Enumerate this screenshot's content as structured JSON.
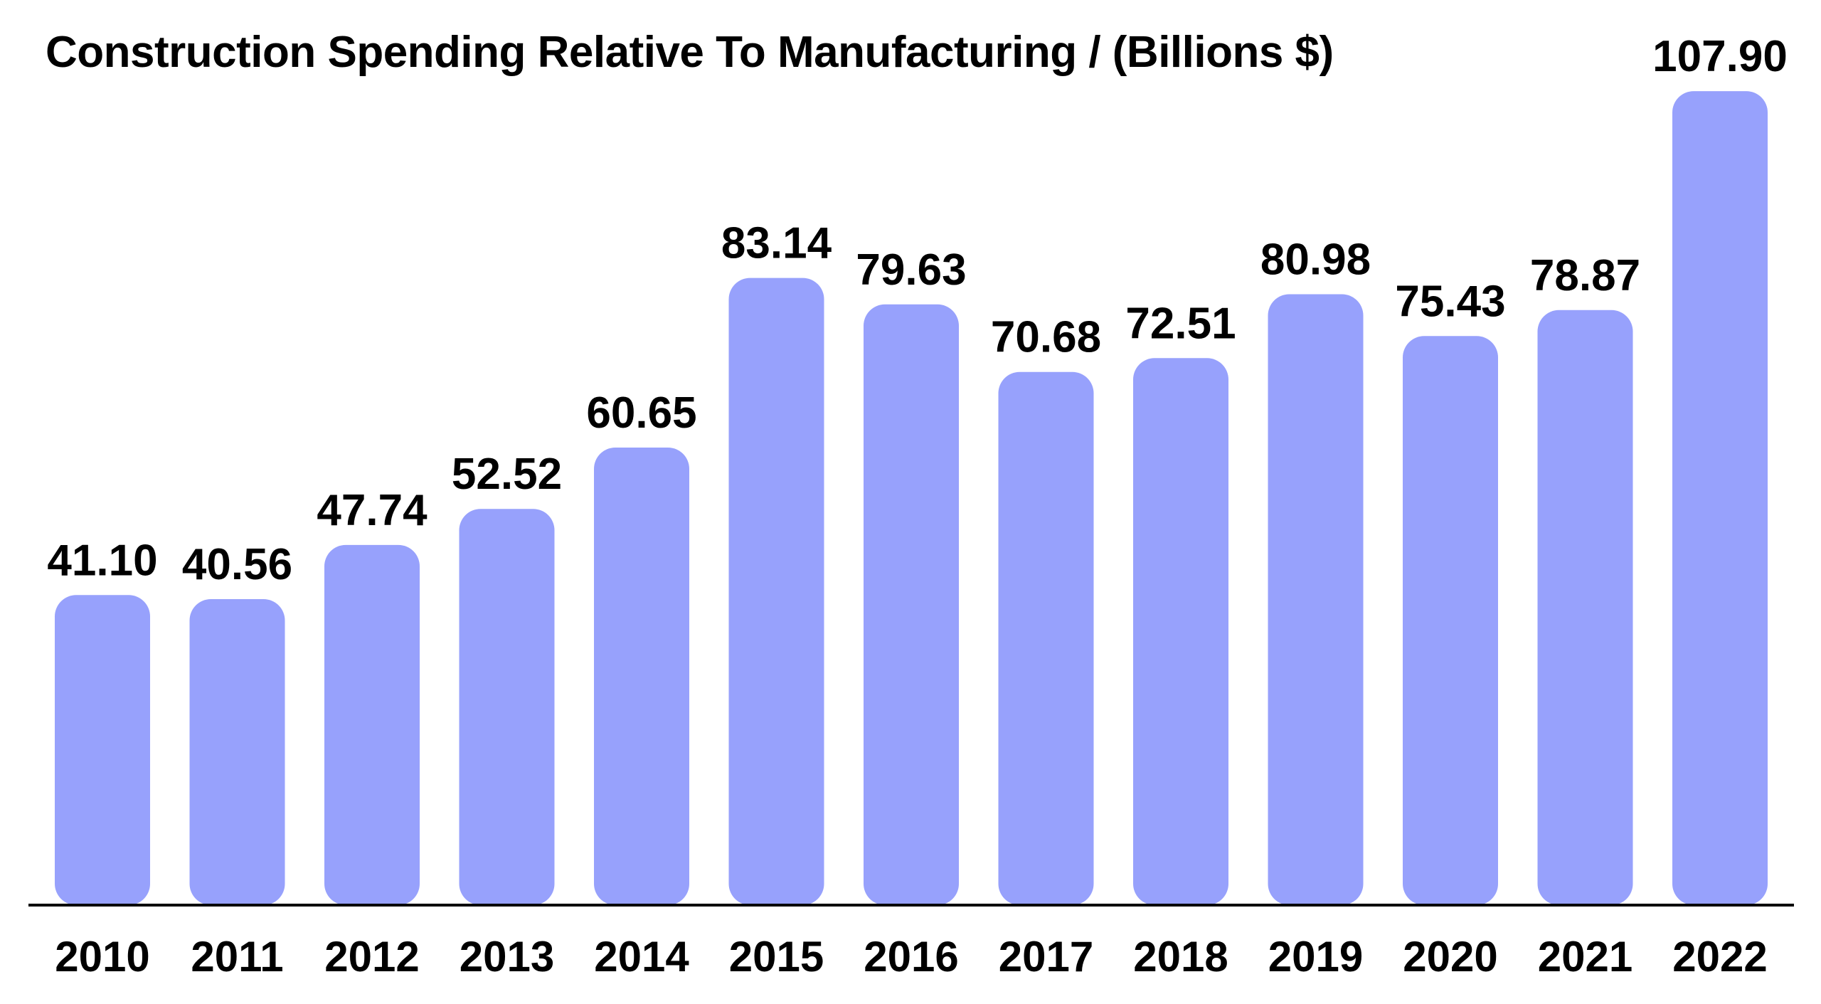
{
  "chart_data": {
    "type": "bar",
    "title": "Construction Spending Relative To Manufacturing / (Billions $)",
    "xlabel": "",
    "ylabel": "",
    "categories": [
      "2010",
      "2011",
      "2012",
      "2013",
      "2014",
      "2015",
      "2016",
      "2017",
      "2018",
      "2019",
      "2020",
      "2021",
      "2022"
    ],
    "values": [
      41.1,
      40.56,
      47.74,
      52.52,
      60.65,
      83.14,
      79.63,
      70.68,
      72.51,
      80.98,
      75.43,
      78.87,
      107.9
    ],
    "value_labels": [
      "41.10",
      "40.56",
      "47.74",
      "52.52",
      "60.65",
      "83.14",
      "79.63",
      "70.68",
      "72.51",
      "80.98",
      "75.43",
      "78.87",
      "107.90"
    ],
    "ylim": [
      0,
      108
    ],
    "grid": false,
    "legend": "none",
    "colors": {
      "bar": "#97a1fc",
      "baseline": "#000000",
      "text": "#000000"
    }
  }
}
